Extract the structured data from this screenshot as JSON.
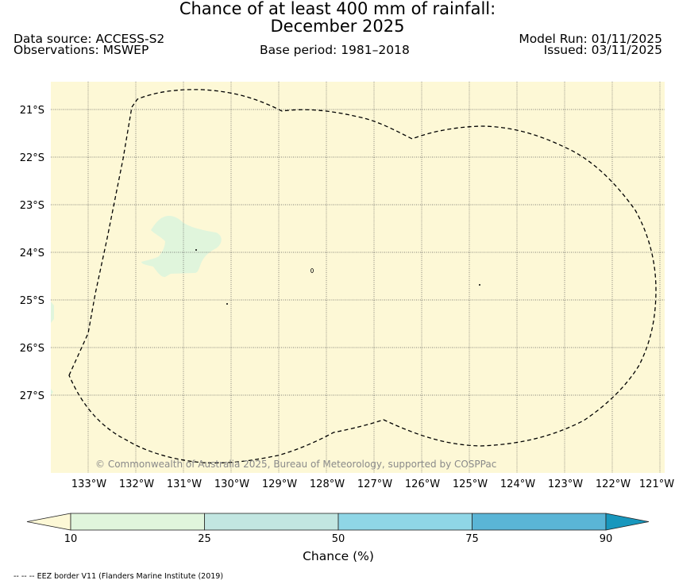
{
  "title_line1": "Chance of at least 400 mm of rainfall:",
  "title_line2": "December 2025",
  "data_source": "Data source: ACCESS-S2",
  "observations": "Observations: MSWEP",
  "base_period": "Base period: 1981–2018",
  "model_run": "Model Run: 01/11/2025",
  "issued": "Issued: 03/11/2025",
  "copyright": "© Commonwealth of Australia 2025, Bureau of Meteorology, supported by COSPPac",
  "lat_labels": [
    "21°S",
    "22°S",
    "23°S",
    "24°S",
    "25°S",
    "26°S",
    "27°S"
  ],
  "lon_labels": [
    "133°W",
    "132°W",
    "131°W",
    "130°W",
    "129°W",
    "128°W",
    "127°W",
    "126°W",
    "125°W",
    "124°W",
    "123°W",
    "122°W",
    "121°W"
  ],
  "colorbar": {
    "title": "Chance (%)",
    "ticks": [
      "10",
      "25",
      "50",
      "75",
      "90"
    ],
    "colors": {
      "below": "#fdf8d6",
      "band1": "#e0f5dc",
      "band2": "#c2e6e1",
      "band3": "#8fd6e6",
      "band4": "#5ab5d6",
      "above": "#1897bd"
    }
  },
  "colors": {
    "map_background": "#fdf8d6",
    "anomaly_region": "#e0f5dc",
    "grid": "#555555",
    "eez_border": "#000000"
  },
  "eez_note": "-- -- -- EEZ border V11 (Flanders Marine Institute (2019)"
}
